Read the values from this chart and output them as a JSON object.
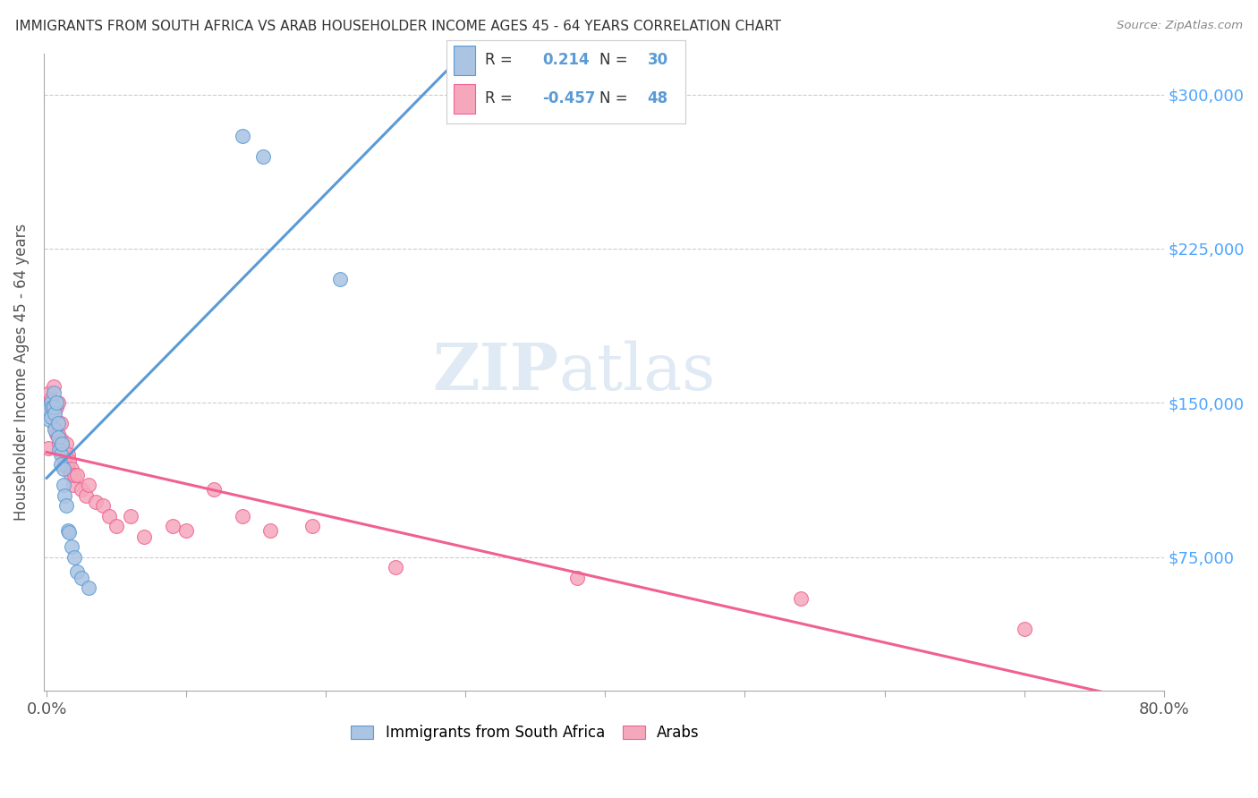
{
  "title": "IMMIGRANTS FROM SOUTH AFRICA VS ARAB HOUSEHOLDER INCOME AGES 45 - 64 YEARS CORRELATION CHART",
  "source": "Source: ZipAtlas.com",
  "ylabel": "Householder Income Ages 45 - 64 years",
  "ytick_labels": [
    "$75,000",
    "$150,000",
    "$225,000",
    "$300,000"
  ],
  "ytick_values": [
    75000,
    150000,
    225000,
    300000
  ],
  "ymin": 10000,
  "ymax": 320000,
  "xmin": -0.002,
  "xmax": 0.8,
  "watermark_zip": "ZIP",
  "watermark_atlas": "atlas",
  "south_africa_R": 0.214,
  "south_africa_N": 30,
  "arab_R": -0.457,
  "arab_N": 48,
  "south_africa_color": "#aac4e2",
  "arab_color": "#f5a8bc",
  "south_africa_line_color": "#5b9bd5",
  "arab_line_color": "#f06090",
  "trendline_dashed_color": "#90b8d8",
  "south_africa_x": [
    0.001,
    0.002,
    0.003,
    0.003,
    0.004,
    0.005,
    0.005,
    0.006,
    0.006,
    0.007,
    0.008,
    0.008,
    0.009,
    0.01,
    0.01,
    0.011,
    0.012,
    0.012,
    0.013,
    0.014,
    0.015,
    0.016,
    0.018,
    0.02,
    0.022,
    0.025,
    0.03,
    0.14,
    0.155,
    0.21
  ],
  "south_africa_y": [
    147000,
    142000,
    150000,
    143000,
    148000,
    155000,
    148000,
    145000,
    137000,
    150000,
    140000,
    133000,
    127000,
    125000,
    120000,
    130000,
    118000,
    110000,
    105000,
    100000,
    88000,
    87000,
    80000,
    75000,
    68000,
    65000,
    60000,
    280000,
    270000,
    210000
  ],
  "arab_x": [
    0.001,
    0.002,
    0.002,
    0.003,
    0.004,
    0.004,
    0.005,
    0.005,
    0.006,
    0.007,
    0.007,
    0.008,
    0.008,
    0.009,
    0.01,
    0.01,
    0.011,
    0.012,
    0.013,
    0.013,
    0.014,
    0.015,
    0.015,
    0.016,
    0.017,
    0.018,
    0.019,
    0.02,
    0.022,
    0.025,
    0.028,
    0.03,
    0.035,
    0.04,
    0.045,
    0.05,
    0.06,
    0.07,
    0.09,
    0.1,
    0.12,
    0.14,
    0.16,
    0.19,
    0.25,
    0.38,
    0.54,
    0.7
  ],
  "arab_y": [
    128000,
    155000,
    148000,
    152000,
    148000,
    145000,
    158000,
    145000,
    138000,
    148000,
    135000,
    150000,
    135000,
    130000,
    140000,
    128000,
    132000,
    128000,
    122000,
    120000,
    130000,
    125000,
    118000,
    122000,
    115000,
    118000,
    110000,
    115000,
    115000,
    108000,
    105000,
    110000,
    102000,
    100000,
    95000,
    90000,
    95000,
    85000,
    90000,
    88000,
    108000,
    95000,
    88000,
    90000,
    70000,
    65000,
    55000,
    40000
  ],
  "legend_south_africa": "Immigrants from South Africa",
  "legend_arab": "Arabs",
  "background_color": "#ffffff",
  "grid_color": "#cccccc",
  "title_color": "#333333",
  "axis_label_color": "#555555",
  "tick_label_color_y": "#4da6ff",
  "tick_label_color_x": "#555555"
}
